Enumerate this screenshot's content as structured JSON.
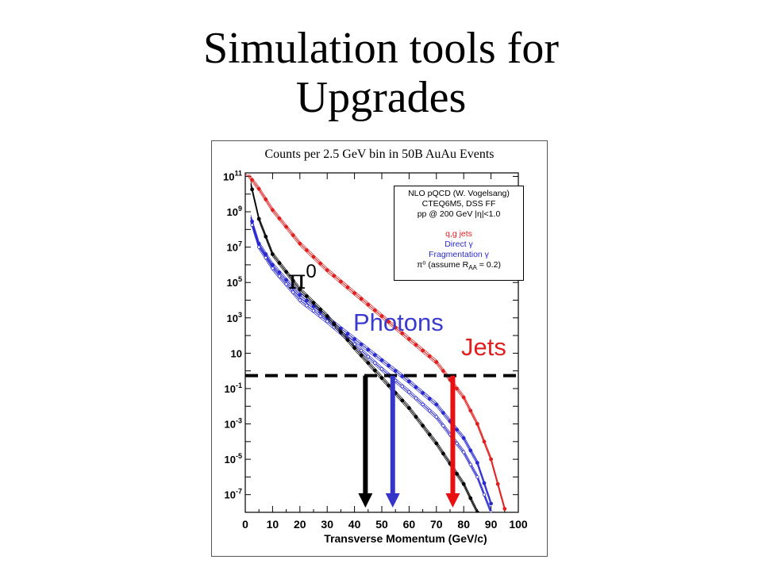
{
  "slide": {
    "title_lines": [
      "Simulation tools for",
      "Upgrades"
    ]
  },
  "chart_data": {
    "type": "line",
    "title": "Counts per 2.5 GeV bin in 50B AuAu Events",
    "xlabel": "Transverse Momentum (GeV/c)",
    "ylabel": "",
    "log_y": true,
    "xlim": [
      0,
      100
    ],
    "ylim_log10": [
      -8,
      11.2
    ],
    "x_ticks": [
      0,
      10,
      20,
      30,
      40,
      50,
      60,
      70,
      80,
      90,
      100
    ],
    "y_tick_labels": [
      {
        "exp": 11,
        "label": "10",
        "sup": "11"
      },
      {
        "exp": 9,
        "label": "10",
        "sup": "9"
      },
      {
        "exp": 7,
        "label": "10",
        "sup": "7"
      },
      {
        "exp": 5,
        "label": "10",
        "sup": "5"
      },
      {
        "exp": 3,
        "label": "10",
        "sup": "3"
      },
      {
        "exp": 1,
        "label": "10",
        "sup": ""
      },
      {
        "exp": -1,
        "label": "10",
        "sup": "-1"
      },
      {
        "exp": -3,
        "label": "10",
        "sup": "-3"
      },
      {
        "exp": -5,
        "label": "10",
        "sup": "-5"
      },
      {
        "exp": -7,
        "label": "10",
        "sup": "-7"
      }
    ],
    "legend": {
      "header": [
        "NLO pQCD (W. Vogelsang)",
        "CTEQ6M5, DSS FF",
        "pp @ 200 GeV |η|<1.0"
      ],
      "entries": [
        {
          "label": "q,g jets",
          "color": "#e02020"
        },
        {
          "label": "Direct γ",
          "color": "#2a2acf"
        },
        {
          "label": "Fragmentation γ",
          "color": "#2a2acf"
        },
        {
          "label": "π⁰ (assume R",
          "sub": "AA",
          "suffix": " = 0.2)",
          "color": "#000000"
        }
      ]
    },
    "series": [
      {
        "name": "q,g jets",
        "color": "#e02020",
        "x": [
          0,
          5,
          10,
          20,
          30,
          40,
          50,
          60,
          70,
          80,
          85,
          90,
          95
        ],
        "log10_y": [
          11.3,
          10.3,
          9.1,
          7.2,
          5.7,
          4.4,
          3.1,
          1.8,
          0.5,
          -1.5,
          -3.0,
          -5.0,
          -7.8
        ]
      },
      {
        "name": "Direct γ",
        "color": "#2a2acf",
        "x": [
          2,
          5,
          10,
          20,
          30,
          40,
          50,
          60,
          70,
          80,
          85,
          90
        ],
        "log10_y": [
          8.7,
          7.2,
          6.0,
          4.3,
          3.0,
          1.8,
          0.6,
          -0.6,
          -1.9,
          -3.8,
          -5.2,
          -7.5
        ]
      },
      {
        "name": "Fragmentation γ",
        "color": "#2a2acf",
        "x": [
          2,
          5,
          10,
          20,
          30,
          40,
          50,
          60,
          70,
          80,
          85,
          90
        ],
        "log10_y": [
          8.5,
          7.0,
          5.8,
          4.0,
          2.8,
          1.5,
          0.1,
          -1.2,
          -2.6,
          -4.6,
          -6.0,
          -8.0
        ]
      },
      {
        "name": "π⁰",
        "color": "#000000",
        "x": [
          2,
          5,
          10,
          20,
          30,
          40,
          50,
          60,
          70,
          80,
          85
        ],
        "log10_y": [
          10.6,
          8.6,
          6.6,
          4.6,
          3.1,
          1.3,
          -0.4,
          -2.1,
          -4.1,
          -6.4,
          -8.0
        ]
      }
    ],
    "annotations": {
      "pi0": {
        "text": "π",
        "sup": "0",
        "color": "#000000"
      },
      "photons": {
        "text": "Photons",
        "color": "#3a3acf"
      },
      "jets": {
        "text": "Jets",
        "color": "#e02020"
      }
    },
    "threshold_line_log10_y": 0.0,
    "arrows": [
      {
        "name": "pi0-arrow",
        "x": 44,
        "color": "#000000"
      },
      {
        "name": "photon-arrow",
        "x": 54,
        "color": "#3535c8"
      },
      {
        "name": "jet-arrow",
        "x": 76,
        "color": "#e81010"
      }
    ]
  }
}
